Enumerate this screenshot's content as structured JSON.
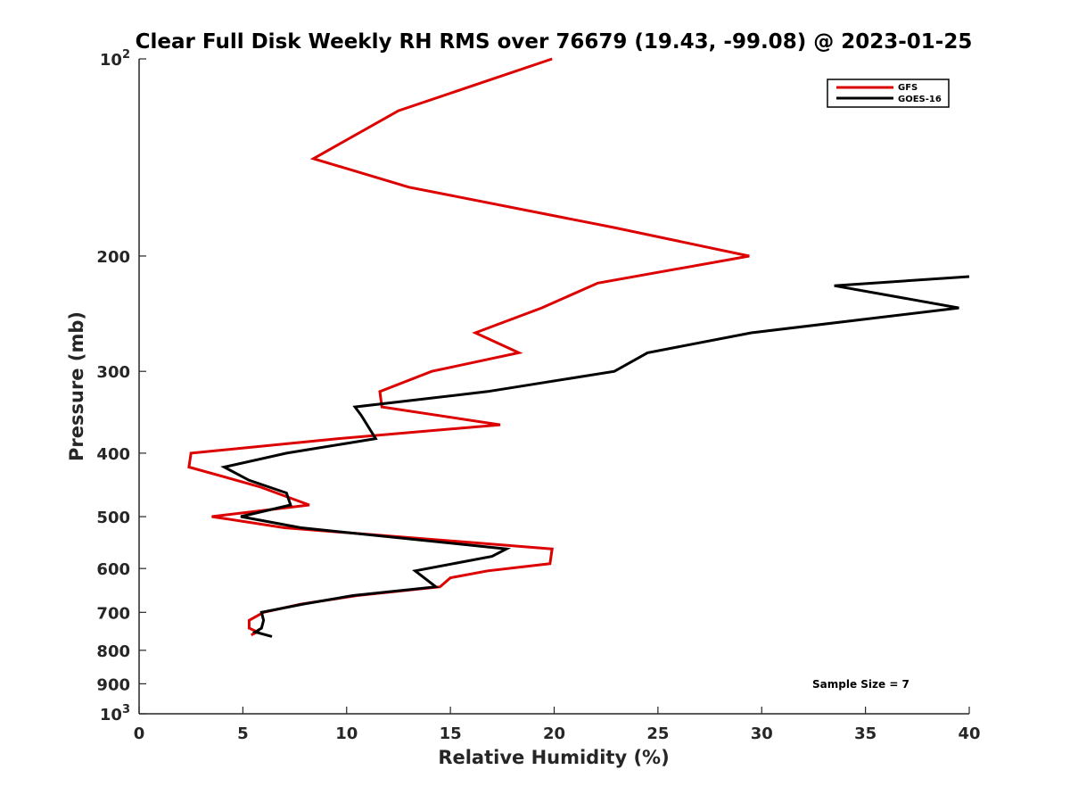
{
  "chart_data": {
    "type": "line",
    "title": "Clear Full Disk Weekly RH RMS over 76679 (19.43, -99.08) @ 2023-01-25",
    "xlabel": "Relative Humidity (%)",
    "ylabel": "Pressure (mb)",
    "xlim": [
      0,
      40
    ],
    "ylim": [
      100,
      1000
    ],
    "yscale": "log",
    "y_reversed": true,
    "grid": false,
    "legend_position": "top-right",
    "x_ticks": [
      "0",
      "5",
      "10",
      "15",
      "20",
      "25",
      "30",
      "35",
      "40"
    ],
    "y_ticks": [
      {
        "value": 100,
        "base": "10",
        "exp": "2"
      },
      {
        "value": 200,
        "label": "200"
      },
      {
        "value": 300,
        "label": "300"
      },
      {
        "value": 400,
        "label": "400"
      },
      {
        "value": 500,
        "label": "500"
      },
      {
        "value": 600,
        "label": "600"
      },
      {
        "value": 700,
        "label": "700"
      },
      {
        "value": 800,
        "label": "800"
      },
      {
        "value": 900,
        "label": "900"
      },
      {
        "value": 1000,
        "base": "10",
        "exp": "3"
      }
    ],
    "annotation": "Sample Size = 7",
    "series": [
      {
        "name": "GFS",
        "color": "#dd0000",
        "points": [
          [
            19.9,
            100
          ],
          [
            12.5,
            120
          ],
          [
            8.4,
            142
          ],
          [
            13.0,
            157
          ],
          [
            22.9,
            181
          ],
          [
            29.4,
            200
          ],
          [
            22.1,
            220
          ],
          [
            19.4,
            240
          ],
          [
            16.2,
            262
          ],
          [
            18.3,
            281
          ],
          [
            14.1,
            300
          ],
          [
            11.6,
            322
          ],
          [
            11.7,
            340
          ],
          [
            17.4,
            362
          ],
          [
            9.6,
            380
          ],
          [
            2.5,
            400
          ],
          [
            2.4,
            420
          ],
          [
            5.8,
            450
          ],
          [
            8.2,
            480
          ],
          [
            3.5,
            500
          ],
          [
            7.0,
            520
          ],
          [
            19.9,
            560
          ],
          [
            19.8,
            590
          ],
          [
            16.8,
            605
          ],
          [
            15.0,
            620
          ],
          [
            14.5,
            640
          ],
          [
            10.5,
            660
          ],
          [
            7.8,
            680
          ],
          [
            6.0,
            700
          ],
          [
            5.3,
            720
          ],
          [
            5.3,
            740
          ],
          [
            5.7,
            750
          ],
          [
            5.4,
            758
          ]
        ]
      },
      {
        "name": "GOES-16",
        "color": "#000000",
        "points": [
          [
            40.0,
            215
          ],
          [
            33.5,
            222
          ],
          [
            39.5,
            240
          ],
          [
            29.5,
            262
          ],
          [
            24.5,
            281
          ],
          [
            22.9,
            300
          ],
          [
            16.8,
            322
          ],
          [
            10.4,
            340
          ],
          [
            10.7,
            350
          ],
          [
            11.4,
            380
          ],
          [
            7.1,
            400
          ],
          [
            4.1,
            420
          ],
          [
            5.3,
            440
          ],
          [
            7.1,
            460
          ],
          [
            7.3,
            480
          ],
          [
            4.9,
            500
          ],
          [
            7.8,
            520
          ],
          [
            17.7,
            560
          ],
          [
            17.0,
            575
          ],
          [
            13.3,
            605
          ],
          [
            14.3,
            640
          ],
          [
            10.3,
            660
          ],
          [
            7.9,
            680
          ],
          [
            5.9,
            700
          ],
          [
            6.0,
            720
          ],
          [
            5.9,
            740
          ],
          [
            5.6,
            750
          ],
          [
            6.4,
            762
          ]
        ]
      }
    ]
  }
}
